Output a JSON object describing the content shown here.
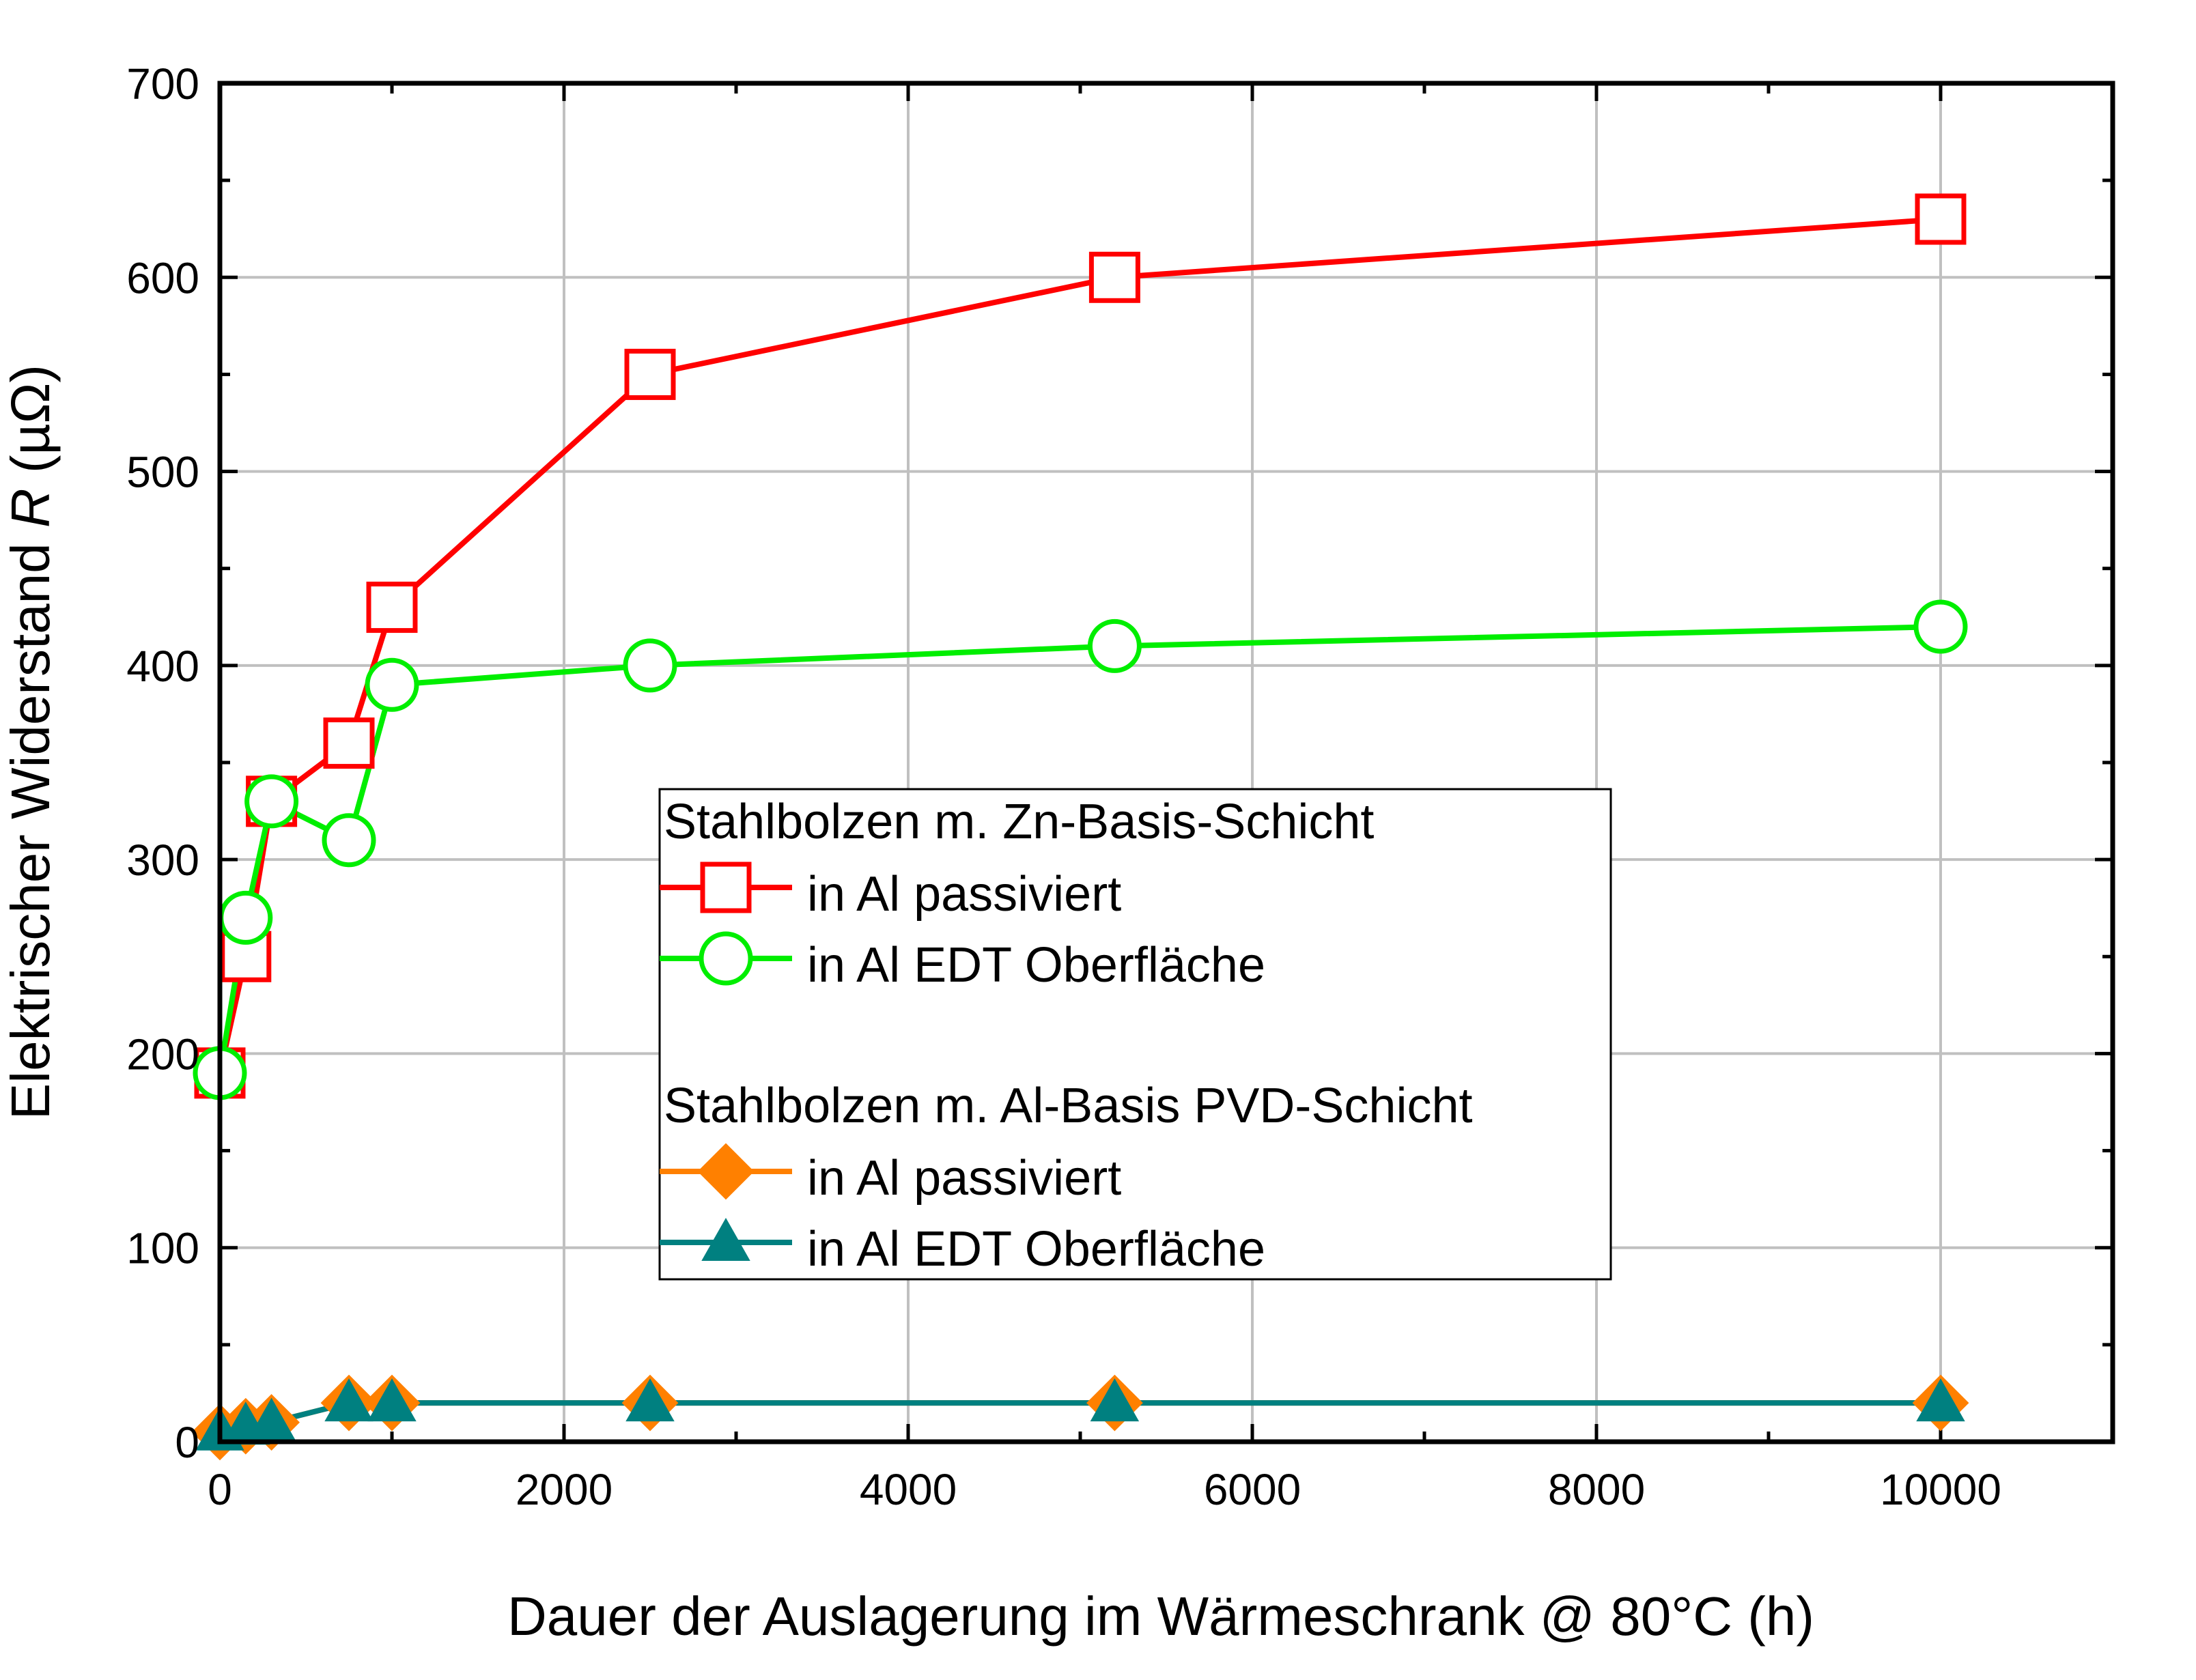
{
  "chart_data": {
    "type": "line",
    "xlabel": "Dauer der Auslagerung im Wärmeschrank @ 80°C (h)",
    "ylabel_main": "Elektrischer Widerstand ",
    "ylabel_italic": "R",
    "ylabel_unit": " (µΩ)",
    "xlim": [
      0,
      11000
    ],
    "ylim": [
      0,
      700
    ],
    "xticks": [
      0,
      2000,
      4000,
      6000,
      8000,
      10000
    ],
    "yticks": [
      0,
      100,
      200,
      300,
      400,
      500,
      600,
      700
    ],
    "grid": true,
    "legend_position": "center-right",
    "legend_groups": [
      {
        "title": "Stahlbolzen m. Zn-Basis-Schicht",
        "series_indices": [
          0,
          1
        ]
      },
      {
        "title": "Stahlbolzen m. Al-Basis PVD-Schicht",
        "series_indices": [
          2,
          3
        ]
      }
    ],
    "series": [
      {
        "name": "in Al passiviert",
        "color": "#ff0000",
        "marker": "square-open",
        "x": [
          0,
          150,
          300,
          750,
          1000,
          2500,
          5200,
          10000
        ],
        "y": [
          190,
          250,
          330,
          360,
          430,
          550,
          600,
          630
        ]
      },
      {
        "name": "in Al EDT Oberfläche",
        "color": "#00ee00",
        "marker": "circle-open",
        "x": [
          0,
          150,
          300,
          750,
          1000,
          2500,
          5200,
          10000
        ],
        "y": [
          190,
          270,
          330,
          310,
          390,
          400,
          410,
          420
        ]
      },
      {
        "name": "in Al passiviert",
        "color": "#ff8000",
        "marker": "diamond-filled",
        "x": [
          0,
          150,
          300,
          750,
          1000,
          2500,
          5200,
          10000
        ],
        "y": [
          5,
          8,
          10,
          20,
          20,
          20,
          20,
          20
        ]
      },
      {
        "name": "in Al EDT Oberfläche",
        "color": "#008080",
        "marker": "triangle-filled",
        "x": [
          0,
          150,
          300,
          750,
          1000,
          2500,
          5200,
          10000
        ],
        "y": [
          5,
          8,
          10,
          20,
          20,
          20,
          20,
          20
        ]
      }
    ]
  }
}
